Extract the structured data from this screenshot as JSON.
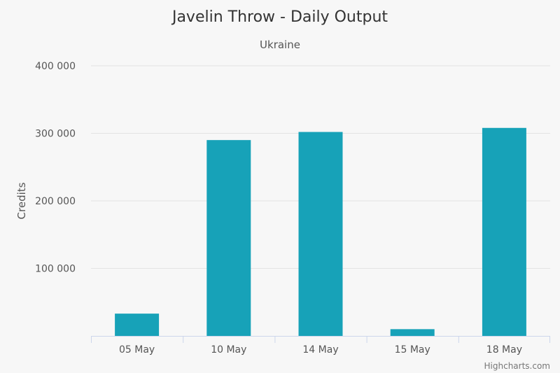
{
  "chart_data": {
    "type": "bar",
    "title": "Javelin Throw - Daily Output",
    "subtitle": "Ukraine",
    "xlabel": "",
    "ylabel": "Credits",
    "categories": [
      "05 May",
      "10 May",
      "14 May",
      "15 May",
      "18 May"
    ],
    "values": [
      33000,
      290000,
      302000,
      10000,
      308000
    ],
    "ylim": [
      0,
      400000
    ],
    "yticks": [
      {
        "value": 100000,
        "label": "100 000"
      },
      {
        "value": 200000,
        "label": "200 000"
      },
      {
        "value": 300000,
        "label": "300 000"
      },
      {
        "value": 400000,
        "label": "400 000"
      }
    ],
    "bar_color": "#17a2b8",
    "grid": true,
    "legend": "none"
  },
  "credit": "Highcharts.com"
}
